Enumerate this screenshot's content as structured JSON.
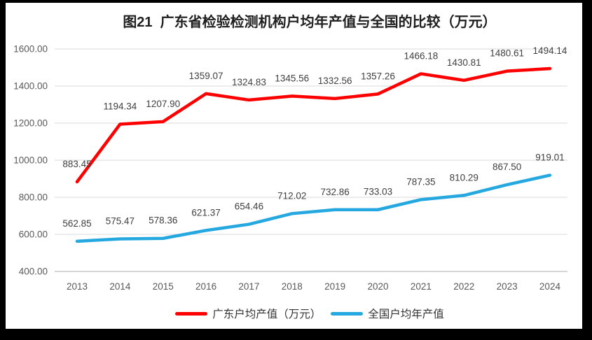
{
  "chart_data": {
    "type": "line",
    "title": "图21  广东省检验检测机构户均年产值与全国的比较（万元）",
    "categories": [
      "2013",
      "2014",
      "2015",
      "2016",
      "2017",
      "2018",
      "2019",
      "2020",
      "2021",
      "2022",
      "2023",
      "2024"
    ],
    "series": [
      {
        "id": "guangdong",
        "name": "广东户均产值（万元）",
        "color": "#FF0000",
        "values": [
          883.45,
          1194.34,
          1207.9,
          1359.07,
          1324.83,
          1345.56,
          1332.56,
          1357.26,
          1466.18,
          1430.81,
          1480.61,
          1494.14
        ]
      },
      {
        "id": "national",
        "name": "全国户均年产值",
        "color": "#25A8E0",
        "values": [
          562.85,
          575.47,
          578.36,
          621.37,
          654.46,
          712.02,
          732.86,
          733.03,
          787.35,
          810.29,
          867.5,
          919.01
        ]
      }
    ],
    "xlabel": "",
    "ylabel": "",
    "ylim": [
      400,
      1600
    ],
    "ytick_step": 200,
    "ytick_labels": [
      "400.00",
      "600.00",
      "800.00",
      "1000.00",
      "1200.00",
      "1400.00",
      "1600.00"
    ],
    "grid": true,
    "data_labels": true,
    "legend_position": "bottom"
  },
  "colors": {
    "grid": "#D9D9D9",
    "axis": "#BFBFBF",
    "tick_label": "#595959",
    "data_label": "#404040",
    "title": "#1F1F1F",
    "legend_text": "#333333",
    "frame": "#000000",
    "background": "#FFFFFF"
  }
}
